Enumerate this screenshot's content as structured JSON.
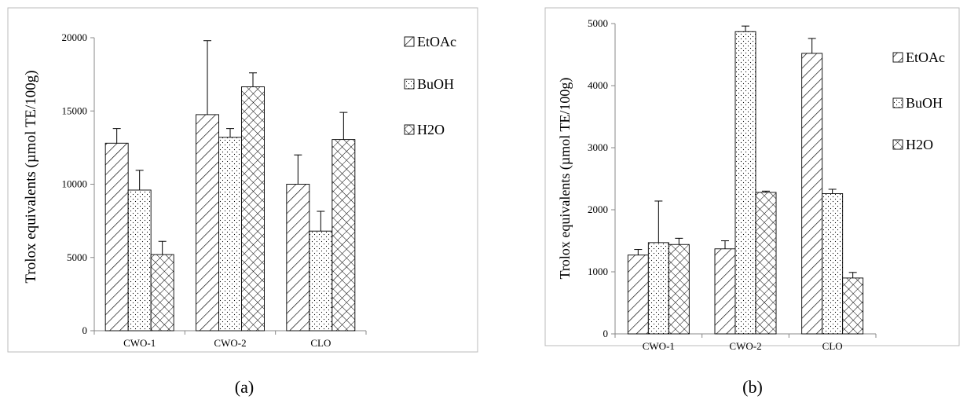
{
  "chart_data": [
    {
      "type": "bar",
      "panel_label": "(a)",
      "ylabel": "Trolox equivalents (µmol TE/100g)",
      "ylim": [
        0,
        20000
      ],
      "yticks": [
        0,
        5000,
        10000,
        15000,
        20000
      ],
      "categories": [
        "CWO-1",
        "CWO-2",
        "CLO"
      ],
      "series": [
        {
          "name": "EtOAc",
          "pattern": "hatch-diagonal",
          "values": [
            12800,
            14750,
            10000
          ],
          "errors": [
            1000,
            5050,
            2000
          ]
        },
        {
          "name": "BuOH",
          "pattern": "dots",
          "values": [
            9600,
            13200,
            6800
          ],
          "errors": [
            1350,
            600,
            1350
          ]
        },
        {
          "name": "H2O",
          "pattern": "crosshatch",
          "values": [
            5200,
            16650,
            13050
          ],
          "errors": [
            900,
            950,
            1850
          ]
        }
      ],
      "legend_position": "top-right",
      "grid": false
    },
    {
      "type": "bar",
      "panel_label": "(b)",
      "ylabel": "Trolox equivalents (µmol TE/100g)",
      "ylim": [
        0,
        5000
      ],
      "yticks": [
        0,
        1000,
        2000,
        3000,
        4000,
        5000
      ],
      "categories": [
        "CWO-1",
        "CWO-2",
        "CLO"
      ],
      "series": [
        {
          "name": "EtOAc",
          "pattern": "hatch-diagonal",
          "values": [
            1270,
            1370,
            4520
          ],
          "errors": [
            90,
            130,
            240
          ]
        },
        {
          "name": "BuOH",
          "pattern": "dots",
          "values": [
            1470,
            4870,
            2260
          ],
          "errors": [
            670,
            90,
            70
          ]
        },
        {
          "name": "H2O",
          "pattern": "crosshatch",
          "values": [
            1440,
            2280,
            900
          ],
          "errors": [
            100,
            20,
            90
          ]
        }
      ],
      "legend_position": "top-right",
      "grid": false
    }
  ],
  "colors": {
    "bar_stroke": "#000000",
    "axis": "#888888",
    "frame": "#bbbbbb",
    "background": "#ffffff"
  }
}
